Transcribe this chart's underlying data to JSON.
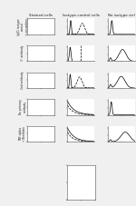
{
  "title_col1": "Stained cells",
  "title_col2": "Isotype control cells",
  "title_col3": "No isotype ctrl",
  "row_labels": [
    "IgG1 isotype\ncontrol\n+ secondary",
    "1° antibody",
    "2nd antibody",
    "No primary\nantibody",
    "TNF-alpha\n+ Brefeldin"
  ],
  "fig_width": 1.5,
  "fig_height": 2.27,
  "dpi": 100,
  "bg_color": "#f0f0f0",
  "plot_bg": "#ffffff",
  "scatter_color": "#111111",
  "line_color": "#000000",
  "marker_size": 0.4,
  "linewidth": 0.5,
  "title_fontsize": 3.0,
  "label_fontsize": 2.2,
  "tick_fontsize": 2.0
}
